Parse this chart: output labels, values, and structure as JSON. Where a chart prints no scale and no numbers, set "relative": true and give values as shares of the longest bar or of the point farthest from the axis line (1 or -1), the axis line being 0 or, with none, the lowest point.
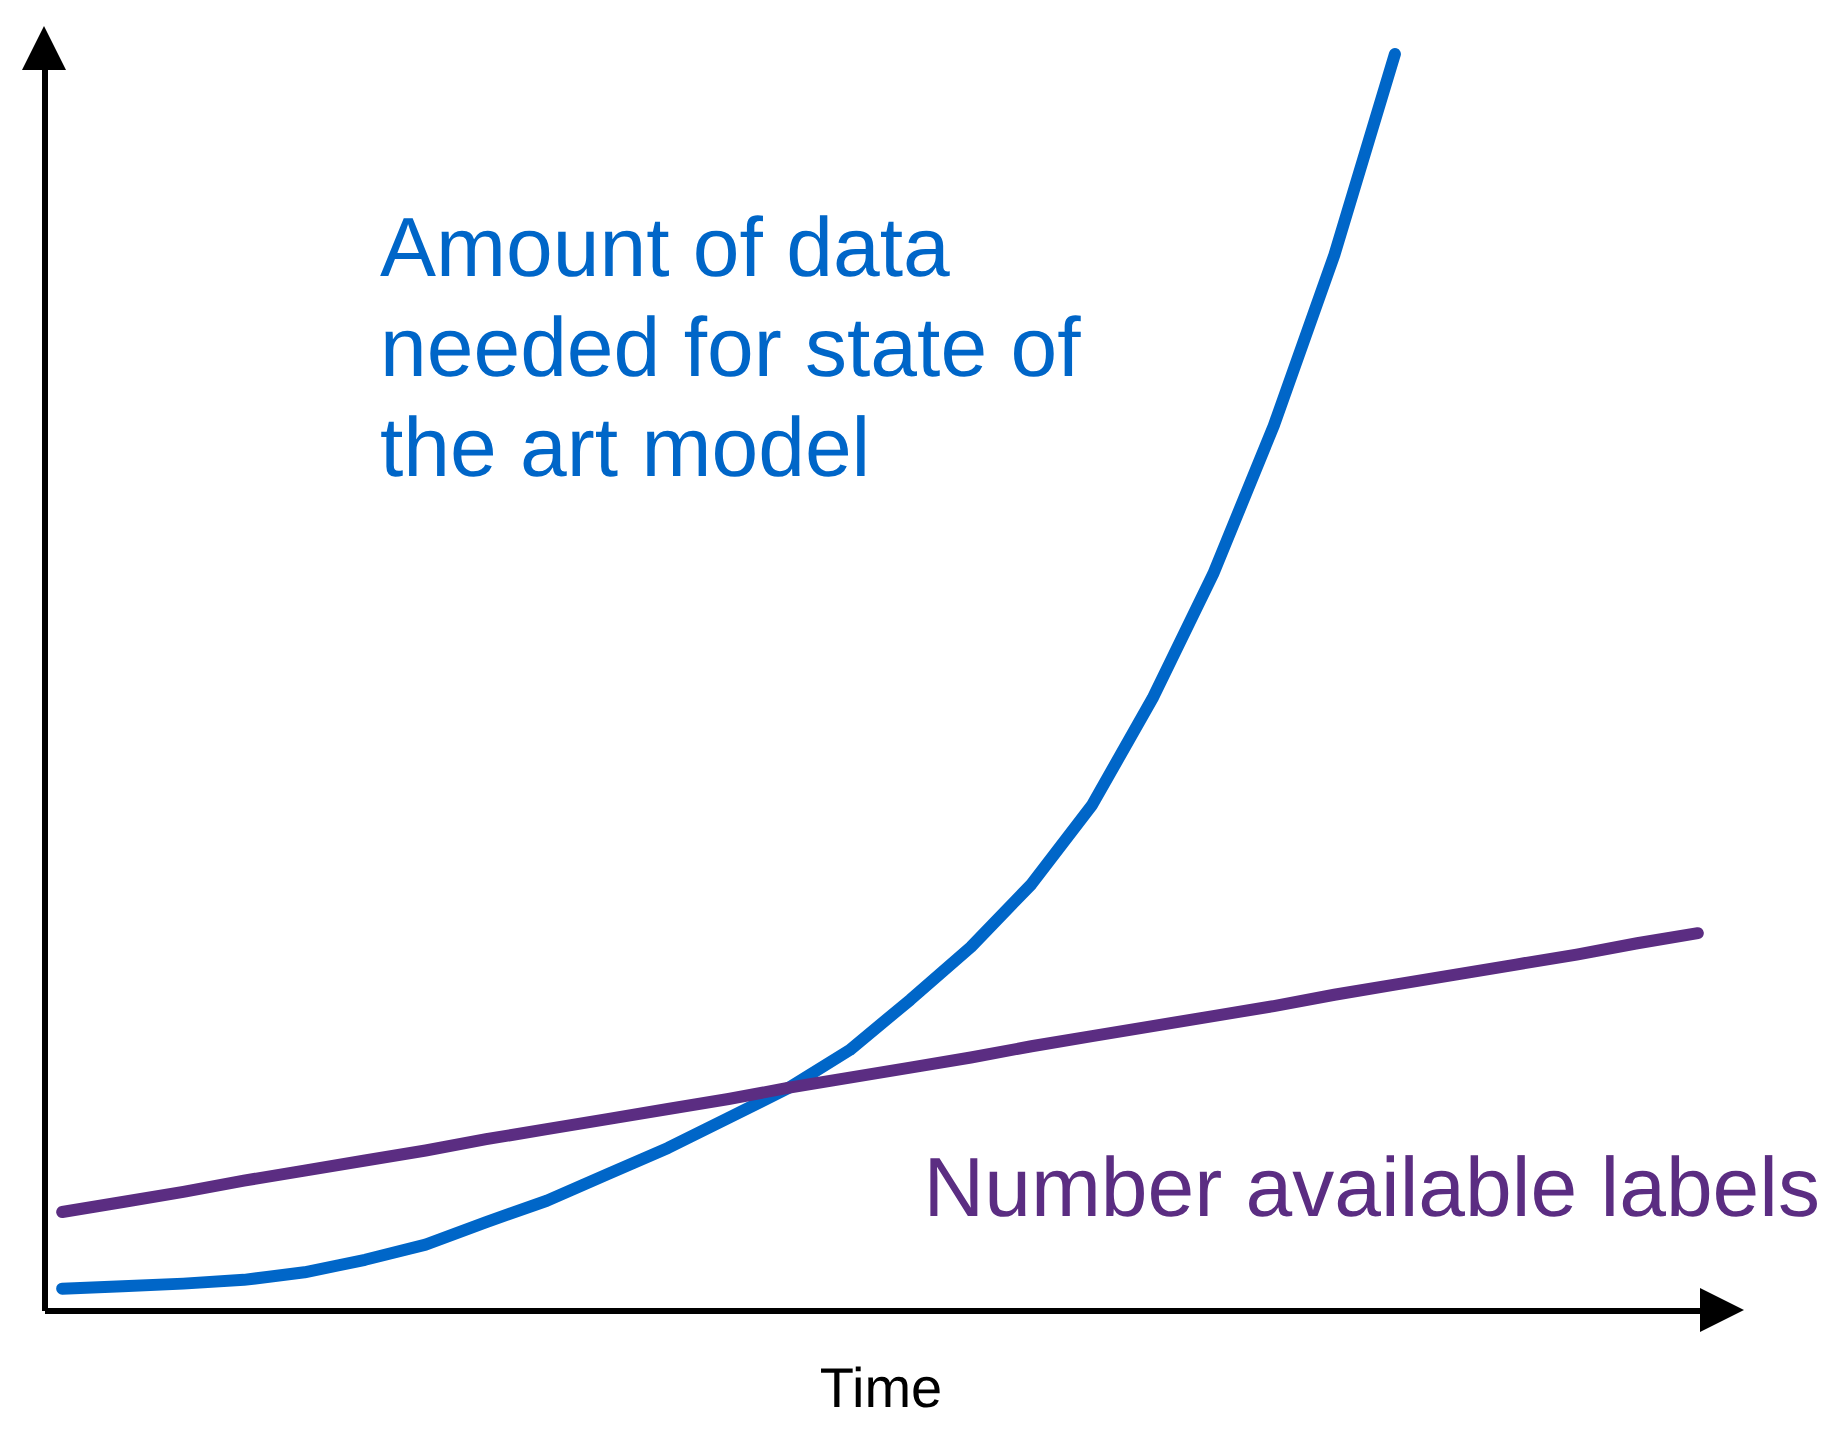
{
  "chart_data": {
    "type": "line",
    "xlabel": "Time",
    "relative": true,
    "categories": [
      null,
      null,
      null,
      null,
      null,
      null,
      null,
      null,
      null,
      null,
      null,
      null,
      null,
      null,
      null,
      null,
      null,
      null,
      null,
      null,
      null,
      null,
      null,
      null,
      null,
      null,
      null,
      null
    ],
    "series": [
      {
        "name": "Amount of data needed for state of the art model",
        "color": "#0066c8",
        "values": [
          0.017,
          0.019,
          0.021,
          0.024,
          0.03,
          0.04,
          0.052,
          0.07,
          0.087,
          0.108,
          0.129,
          0.153,
          0.177,
          0.207,
          0.247,
          0.289,
          0.339,
          0.402,
          0.487,
          0.586,
          0.704,
          0.84,
          1,
          null,
          null,
          null,
          null,
          null
        ]
      },
      {
        "name": "Number available labels",
        "color": "#5b2d82",
        "values": [
          0.078,
          0.086,
          0.094,
          0.103,
          0.111,
          0.119,
          0.127,
          0.136,
          0.144,
          0.152,
          0.16,
          0.168,
          0.177,
          0.185,
          0.193,
          0.201,
          0.21,
          0.218,
          0.226,
          0.234,
          0.242,
          0.251,
          0.259,
          0.267,
          0.275,
          0.283,
          0.292,
          0.3
        ]
      }
    ]
  }
}
